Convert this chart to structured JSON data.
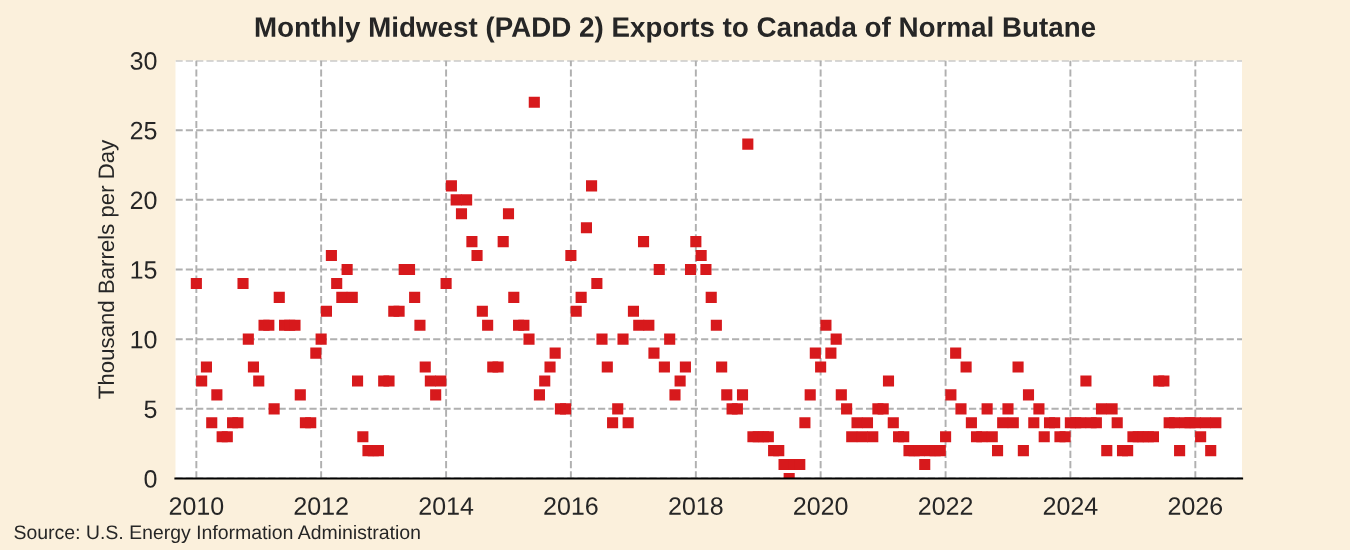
{
  "chart_data": {
    "type": "scatter",
    "title": "Monthly Midwest (PADD 2) Exports to Canada of Normal Butane",
    "ylabel": "Thousand Barrels per Day",
    "annotations": [
      "Source: U.S. Energy Information Administration"
    ],
    "x": [
      "2010-01",
      "2010-02",
      "2010-03",
      "2010-04",
      "2010-05",
      "2010-06",
      "2010-07",
      "2010-08",
      "2010-09",
      "2010-10",
      "2010-11",
      "2010-12",
      "2011-01",
      "2011-02",
      "2011-03",
      "2011-04",
      "2011-05",
      "2011-06",
      "2011-07",
      "2011-08",
      "2011-09",
      "2011-10",
      "2011-11",
      "2011-12",
      "2012-01",
      "2012-02",
      "2012-03",
      "2012-04",
      "2012-05",
      "2012-06",
      "2012-07",
      "2012-08",
      "2012-09",
      "2012-10",
      "2012-11",
      "2012-12",
      "2013-01",
      "2013-02",
      "2013-03",
      "2013-04",
      "2013-05",
      "2013-06",
      "2013-07",
      "2013-08",
      "2013-09",
      "2013-10",
      "2013-11",
      "2013-12",
      "2014-01",
      "2014-02",
      "2014-03",
      "2014-04",
      "2014-05",
      "2014-06",
      "2014-07",
      "2014-08",
      "2014-09",
      "2014-10",
      "2014-11",
      "2014-12",
      "2015-01",
      "2015-02",
      "2015-03",
      "2015-04",
      "2015-05",
      "2015-06",
      "2015-07",
      "2015-08",
      "2015-09",
      "2015-10",
      "2015-11",
      "2015-12",
      "2016-01",
      "2016-02",
      "2016-03",
      "2016-04",
      "2016-05",
      "2016-06",
      "2016-07",
      "2016-08",
      "2016-09",
      "2016-10",
      "2016-11",
      "2016-12",
      "2017-01",
      "2017-02",
      "2017-03",
      "2017-04",
      "2017-05",
      "2017-06",
      "2017-07",
      "2017-08",
      "2017-09",
      "2017-10",
      "2017-11",
      "2017-12",
      "2018-01",
      "2018-02",
      "2018-03",
      "2018-04",
      "2018-05",
      "2018-06",
      "2018-07",
      "2018-08",
      "2018-09",
      "2018-10",
      "2018-11",
      "2018-12",
      "2019-01",
      "2019-02",
      "2019-03",
      "2019-04",
      "2019-05",
      "2019-06",
      "2019-07",
      "2019-08",
      "2019-09",
      "2019-10",
      "2019-11",
      "2019-12",
      "2020-01",
      "2020-02",
      "2020-03",
      "2020-04",
      "2020-05",
      "2020-06",
      "2020-07",
      "2020-08",
      "2020-09",
      "2020-10",
      "2020-11",
      "2020-12",
      "2021-01",
      "2021-02",
      "2021-03",
      "2021-04",
      "2021-05",
      "2021-06",
      "2021-07",
      "2021-08",
      "2021-09",
      "2021-10",
      "2021-11",
      "2021-12",
      "2022-01",
      "2022-02",
      "2022-03",
      "2022-04",
      "2022-05",
      "2022-06",
      "2022-07",
      "2022-08",
      "2022-09",
      "2022-10",
      "2022-11",
      "2022-12",
      "2023-01",
      "2023-02",
      "2023-03",
      "2023-04",
      "2023-05",
      "2023-06",
      "2023-07",
      "2023-08",
      "2023-09",
      "2023-10",
      "2023-11",
      "2023-12",
      "2024-01",
      "2024-02",
      "2024-03",
      "2024-04",
      "2024-05",
      "2024-06",
      "2024-07",
      "2024-08",
      "2024-09",
      "2024-10",
      "2024-11",
      "2024-12",
      "2025-01",
      "2025-02",
      "2025-03",
      "2025-04",
      "2025-05",
      "2025-06",
      "2025-07",
      "2025-08",
      "2025-09",
      "2025-10",
      "2025-11",
      "2025-12",
      "2026-01",
      "2026-02",
      "2026-03",
      "2026-04",
      "2026-05"
    ],
    "series": [
      {
        "color": "#d7191c",
        "values": [
          14,
          7,
          8,
          4,
          6,
          3,
          3,
          4,
          4,
          14,
          10,
          8,
          7,
          11,
          11,
          5,
          13,
          11,
          11,
          11,
          6,
          4,
          4,
          9,
          10,
          12,
          16,
          14,
          13,
          15,
          13,
          7,
          3,
          2,
          2,
          2,
          7,
          7,
          12,
          12,
          15,
          15,
          13,
          11,
          8,
          7,
          6,
          7,
          14,
          21,
          20,
          19,
          20,
          17,
          16,
          12,
          11,
          8,
          8,
          17,
          19,
          13,
          11,
          11,
          10,
          27,
          6,
          7,
          8,
          9,
          5,
          5,
          16,
          12,
          13,
          18,
          21,
          14,
          10,
          8,
          4,
          5,
          10,
          4,
          12,
          11,
          17,
          11,
          9,
          15,
          8,
          10,
          6,
          7,
          8,
          15,
          17,
          16,
          15,
          13,
          11,
          8,
          6,
          5,
          5,
          6,
          24,
          3,
          3,
          3,
          3,
          2,
          2,
          1,
          0,
          1,
          1,
          4,
          6,
          9,
          8,
          11,
          9,
          10,
          6,
          5,
          3,
          4,
          3,
          4,
          3,
          5,
          5,
          7,
          4,
          3,
          3,
          2,
          2,
          2,
          1,
          2,
          2,
          2,
          3,
          6,
          9,
          5,
          8,
          4,
          3,
          3,
          5,
          3,
          2,
          4,
          5,
          4,
          8,
          2,
          6,
          4,
          5,
          3,
          4,
          4,
          3,
          3,
          4,
          4,
          4,
          7,
          4,
          4,
          5,
          2,
          5,
          4,
          2,
          2,
          3,
          3,
          3,
          3,
          3,
          7,
          7,
          4,
          4,
          2,
          4,
          4,
          4,
          3,
          4,
          2,
          4
        ]
      }
    ],
    "xlim": [
      "2009-09",
      "2026-10"
    ],
    "xticks": [
      {
        "value": "2010-01",
        "label": "2010"
      },
      {
        "value": "2012-01",
        "label": "2012"
      },
      {
        "value": "2014-01",
        "label": "2014"
      },
      {
        "value": "2016-01",
        "label": "2016"
      },
      {
        "value": "2018-01",
        "label": "2018"
      },
      {
        "value": "2020-01",
        "label": "2020"
      },
      {
        "value": "2022-01",
        "label": "2022"
      },
      {
        "value": "2024-01",
        "label": "2024"
      },
      {
        "value": "2026-01",
        "label": "2026"
      }
    ],
    "ylim": [
      0,
      30
    ],
    "yticks": [
      0,
      5,
      10,
      15,
      20,
      25,
      30
    ],
    "grid": true,
    "marker": "square",
    "legend": false
  }
}
